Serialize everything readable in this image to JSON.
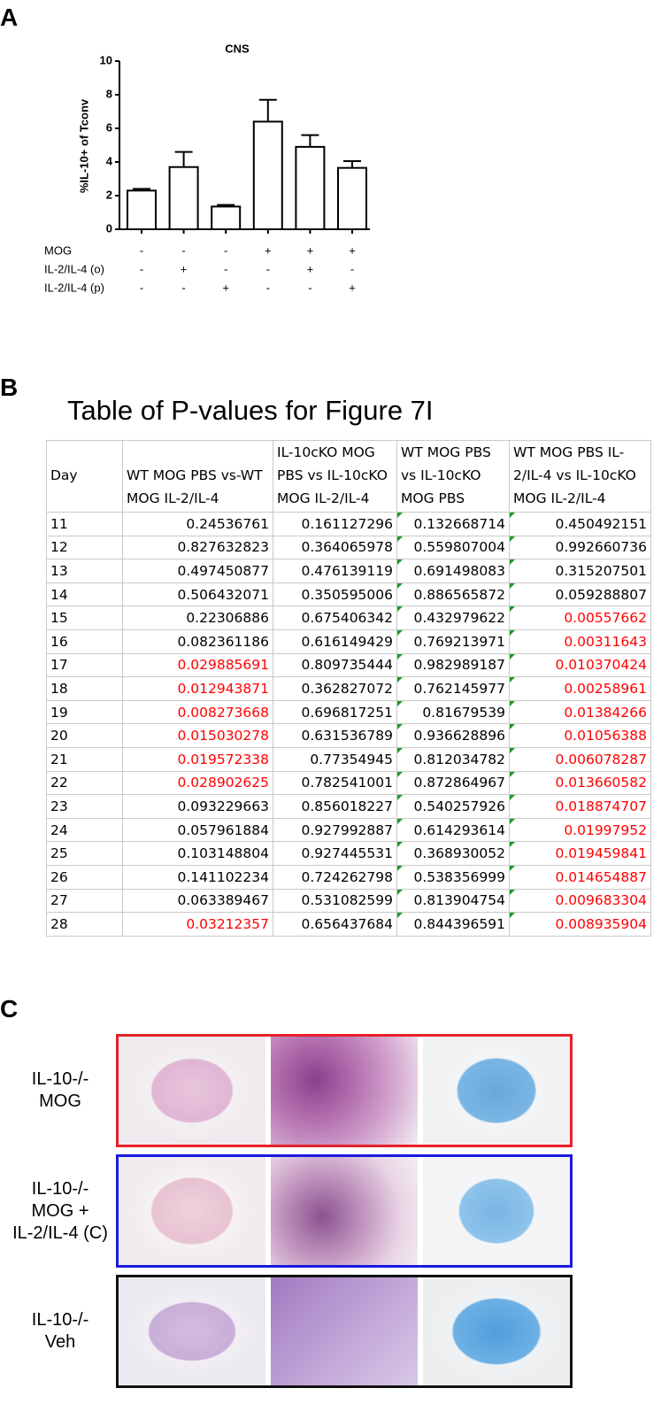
{
  "panel_labels": [
    "A",
    "B",
    "C"
  ],
  "chart_data": {
    "type": "bar",
    "title": "CNS",
    "y_label": "%IL-10+ of Tconv",
    "categories": [
      null,
      null,
      null,
      null,
      null,
      null
    ],
    "values": [
      2.3,
      3.7,
      1.35,
      6.4,
      4.9,
      3.65
    ],
    "errors": [
      0.1,
      0.9,
      0.1,
      1.3,
      0.7,
      0.4
    ],
    "color": "#ffffff",
    "ylim": [
      0,
      10
    ],
    "yticks": [
      0,
      2,
      4,
      6,
      8,
      10
    ],
    "conditions": [
      {
        "name": "MOG",
        "marks": [
          "-",
          "-",
          "-",
          "+",
          "+",
          "+"
        ]
      },
      {
        "name": "IL-2/IL-4 (o)",
        "marks": [
          "-",
          "+",
          "-",
          "-",
          "+",
          "-"
        ]
      },
      {
        "name": "IL-2/IL-4 (p)",
        "marks": [
          "-",
          "-",
          "+",
          "-",
          "-",
          "+"
        ]
      }
    ]
  },
  "table": {
    "title": "Table of P-values for Figure 7I",
    "header": [
      "Day",
      "WT MOG PBS vs-WT MOG IL-2/IL-4",
      "IL-10cKO MOG PBS vs IL-10cKO MOG IL-2/IL-4",
      "WT MOG PBS vs IL-10cKO MOG PBS",
      "WT MOG PBS IL-2/IL-4  vs IL-10cKO MOG IL-2/IL-4"
    ],
    "rows": [
      [
        11,
        0.24536761,
        0.161127296,
        0.132668714,
        0.450492151
      ],
      [
        12,
        0.827632823,
        0.364065978,
        0.559807004,
        0.992660736
      ],
      [
        13,
        0.497450877,
        0.476139119,
        0.691498083,
        0.315207501
      ],
      [
        14,
        0.506432071,
        0.350595006,
        0.886565872,
        0.059288807
      ],
      [
        15,
        0.22306886,
        0.675406342,
        0.432979622,
        0.00557662
      ],
      [
        16,
        0.082361186,
        0.616149429,
        0.769213971,
        0.00311643
      ],
      [
        17,
        0.029885691,
        0.809735444,
        0.982989187,
        0.010370424
      ],
      [
        18,
        0.012943871,
        0.362827072,
        0.762145977,
        0.00258961
      ],
      [
        19,
        0.008273668,
        0.696817251,
        0.81679539,
        0.01384266
      ],
      [
        20,
        0.015030278,
        0.631536789,
        0.936628896,
        0.01056388
      ],
      [
        21,
        0.019572338,
        0.77354945,
        0.812034782,
        0.006078287
      ],
      [
        22,
        0.028902625,
        0.782541001,
        0.872864967,
        0.013660582
      ],
      [
        23,
        0.093229663,
        0.856018227,
        0.540257926,
        0.018874707
      ],
      [
        24,
        0.057961884,
        0.927992887,
        0.614293614,
        0.01997952
      ],
      [
        25,
        0.103148804,
        0.927445531,
        0.368930052,
        0.019459841
      ],
      [
        26,
        0.141102234,
        0.724262798,
        0.538356999,
        0.014654887
      ],
      [
        27,
        0.063389467,
        0.531082599,
        0.813904754,
        0.009683304
      ],
      [
        28,
        0.03212357,
        0.656437684,
        0.844396591,
        0.008935904
      ]
    ],
    "highlight_color": "#ff0000",
    "highlighted_cells": [
      [
        6,
        1
      ],
      [
        7,
        1
      ],
      [
        8,
        1
      ],
      [
        9,
        1
      ],
      [
        10,
        1
      ],
      [
        11,
        1
      ],
      [
        17,
        1
      ],
      [
        4,
        4
      ],
      [
        5,
        4
      ],
      [
        6,
        4
      ],
      [
        7,
        4
      ],
      [
        8,
        4
      ],
      [
        9,
        4
      ],
      [
        10,
        4
      ],
      [
        11,
        4
      ],
      [
        12,
        4
      ],
      [
        13,
        4
      ],
      [
        14,
        4
      ],
      [
        15,
        4
      ],
      [
        16,
        4
      ],
      [
        17,
        4
      ]
    ]
  },
  "histology": {
    "rows": [
      {
        "label": [
          "IL-10-/-",
          "MOG"
        ],
        "border_color": "#e8202a"
      },
      {
        "label": [
          "IL-10-/-",
          "MOG +",
          "IL-2/IL-4 (C)"
        ],
        "border_color": "#1a1adf"
      },
      {
        "label": [
          "IL-10-/-",
          "Veh"
        ],
        "border_color": "#111111"
      }
    ]
  }
}
